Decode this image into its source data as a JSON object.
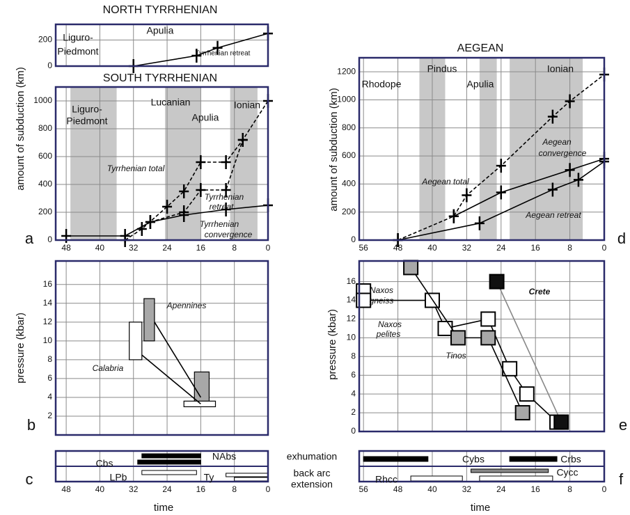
{
  "chart_data": [
    {
      "type": "line",
      "title": "NORTH TYRRHENIAN",
      "xlim": [
        50.5,
        0
      ],
      "ylim": [
        0,
        320
      ],
      "yticks": [
        0,
        200
      ],
      "xgrid": [
        48,
        40,
        32,
        24,
        16,
        8,
        0
      ],
      "annotations": [
        "Liguro-",
        "Piedmont",
        "Apulia",
        "Tyrrhenian retreat"
      ],
      "series": [
        {
          "color": "#000000",
          "dashed": false,
          "x": [
            32,
            17,
            12,
            0
          ],
          "values": [
            0,
            80,
            140,
            250
          ]
        }
      ]
    },
    {
      "type": "line",
      "title": "SOUTH TYRRHENIAN",
      "ylabel": "amount of subduction (km)",
      "panel": "a",
      "xlim": [
        50.5,
        0
      ],
      "ylim": [
        0,
        1100
      ],
      "xticks": [
        48,
        40,
        32,
        24,
        16,
        8,
        0
      ],
      "yticks": [
        0,
        200,
        400,
        600,
        800,
        1000
      ],
      "bands": [
        [
          47,
          36
        ],
        [
          24.5,
          16
        ],
        [
          9,
          2.5
        ]
      ],
      "annotations": [
        "Liguro-",
        "Piedmont",
        "Lucanian",
        "Apulia",
        "Ionian",
        "Tyrrhenian total",
        "Tyrrhenian",
        "retreat",
        "Tyrrhenian",
        "convergence"
      ],
      "series": [
        {
          "color": "#000000",
          "dashed": true,
          "x": [
            34,
            30,
            24,
            20,
            16,
            10,
            6,
            0
          ],
          "values": [
            0,
            80,
            240,
            350,
            560,
            560,
            720,
            1000
          ]
        },
        {
          "color": "#000000",
          "dashed": true,
          "x": [
            28,
            20,
            16,
            10,
            6
          ],
          "values": [
            130,
            200,
            360,
            360,
            720
          ]
        },
        {
          "color": "#000000",
          "dashed": false,
          "x": [
            48,
            34,
            28,
            20,
            10,
            0
          ],
          "values": [
            30,
            30,
            130,
            180,
            220,
            250
          ]
        }
      ]
    },
    {
      "type": "line",
      "title": "AEGEAN",
      "ylabel": "amount of subduction (km)",
      "panel": "d",
      "xlim": [
        57,
        0
      ],
      "ylim": [
        0,
        1300
      ],
      "xticks": [
        56,
        48,
        40,
        32,
        24,
        16,
        8,
        0
      ],
      "yticks": [
        0,
        200,
        400,
        600,
        800,
        1000,
        1200
      ],
      "bands": [
        [
          43,
          37
        ],
        [
          29,
          25
        ],
        [
          22,
          5
        ]
      ],
      "annotations": [
        "Pindus",
        "Rhodope",
        "Apulia",
        "Ionian",
        "Aegean total",
        "Aegean",
        "convergence",
        "Aegean retreat"
      ],
      "series": [
        {
          "color": "#000000",
          "dashed": true,
          "x": [
            48,
            35,
            32,
            24,
            12,
            8,
            0
          ],
          "values": [
            0,
            170,
            320,
            530,
            880,
            990,
            1180
          ]
        },
        {
          "color": "#000000",
          "dashed": false,
          "x": [
            35,
            24,
            8,
            0
          ],
          "values": [
            170,
            340,
            500,
            580
          ]
        },
        {
          "color": "#000000",
          "dashed": false,
          "x": [
            48,
            29,
            12,
            6,
            0
          ],
          "values": [
            0,
            120,
            360,
            430,
            560
          ]
        }
      ]
    },
    {
      "type": "box",
      "ylabel": "pressure (kbar)",
      "panel": "b",
      "xlim": [
        50.5,
        0
      ],
      "ylim": [
        0,
        18.5
      ],
      "yticks": [
        2,
        4,
        6,
        8,
        10,
        12,
        14,
        16
      ],
      "xgrid": [
        48,
        40,
        32,
        24,
        16,
        8,
        0
      ],
      "annotations": [
        "Apennines",
        "Calabria"
      ],
      "boxes": [
        {
          "x": [
            29.5,
            27
          ],
          "y": [
            10,
            14.5
          ],
          "fill": "#a8a8a8"
        },
        {
          "x": [
            33,
            30
          ],
          "y": [
            8,
            12
          ],
          "fill": "#ffffff"
        },
        {
          "x": [
            17.5,
            14
          ],
          "y": [
            3.3,
            6.7
          ],
          "fill": "#a8a8a8"
        },
        {
          "x": [
            20,
            12.5
          ],
          "y": [
            3,
            3.6
          ],
          "fill": "#ffffff"
        }
      ],
      "series": [
        {
          "color": "#000000",
          "dashed": false,
          "x": [
            27,
            16
          ],
          "values": [
            12,
            4
          ]
        },
        {
          "color": "#000000",
          "dashed": false,
          "x": [
            30,
            16
          ],
          "values": [
            8.5,
            3.3
          ]
        }
      ]
    },
    {
      "type": "scatter",
      "ylabel": "pressure (kbar)",
      "panel": "e",
      "xlim": [
        57,
        0
      ],
      "ylim": [
        0,
        18.2
      ],
      "yticks": [
        0,
        2,
        4,
        6,
        8,
        10,
        12,
        14,
        16
      ],
      "xgrid": [
        56,
        48,
        40,
        32,
        24,
        16,
        8,
        0
      ],
      "annotations": [
        "Naxos",
        "gneiss",
        "Naxos",
        "pelites",
        "Tinos",
        "Crete"
      ],
      "series": [
        {
          "color": "#000000",
          "fill": "#ffffff",
          "dashed": false,
          "x": [
            56,
            56,
            40,
            37,
            27,
            22,
            18,
            11
          ],
          "values": [
            15,
            14,
            14,
            11,
            12,
            6.7,
            4,
            1
          ]
        },
        {
          "color": "#000000",
          "fill": "#a8a8a8",
          "dashed": false,
          "x": [
            45,
            34,
            27,
            19
          ],
          "values": [
            17.5,
            10,
            10,
            2
          ]
        },
        {
          "color": "#888888",
          "fill": "#111111",
          "dashed": false,
          "x": [
            25,
            10
          ],
          "values": [
            16,
            1
          ]
        }
      ]
    },
    {
      "type": "timeline",
      "xlabel": "time",
      "panel": "c",
      "xlim": [
        50.5,
        0
      ],
      "xticks": [
        48,
        40,
        32,
        24,
        16,
        8,
        0
      ],
      "row_labels": [
        "exhumation",
        "back arc",
        "extension"
      ],
      "annotations": [
        "NAbs",
        "Cbs",
        "LPb",
        "Ty"
      ],
      "bars": [
        {
          "row": 0,
          "x": [
            30,
            16
          ],
          "fill": "#000000"
        },
        {
          "row": 0,
          "x": [
            31,
            16
          ],
          "fill": "#000000"
        },
        {
          "row": 1,
          "x": [
            30,
            17
          ],
          "fill": "#ffffff"
        },
        {
          "row": 1,
          "x": [
            10,
            0
          ],
          "fill": "#ffffff"
        },
        {
          "row": 1,
          "x": [
            8,
            0
          ],
          "fill": "#ffffff"
        }
      ]
    },
    {
      "type": "timeline",
      "xlabel": "time",
      "panel": "f",
      "xlim": [
        57,
        0
      ],
      "xticks": [
        56,
        48,
        40,
        32,
        24,
        16,
        8,
        0
      ],
      "annotations": [
        "Cybs",
        "Crbs",
        "Cycc",
        "Rhcc"
      ],
      "bars": [
        {
          "row": 0,
          "x": [
            56,
            41
          ],
          "fill": "#000000"
        },
        {
          "row": 0,
          "x": [
            22,
            11
          ],
          "fill": "#000000"
        },
        {
          "row": 1,
          "x": [
            31,
            13
          ],
          "fill": "#888888"
        },
        {
          "row": 1,
          "x": [
            45,
            33
          ],
          "fill": "#ffffff"
        },
        {
          "row": 1,
          "x": [
            29,
            12
          ],
          "fill": "#ffffff"
        }
      ]
    }
  ]
}
